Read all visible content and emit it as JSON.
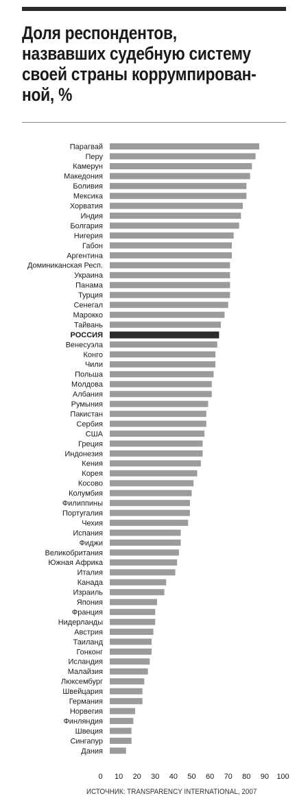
{
  "header": {
    "title_lines": [
      "Доля респондентов,",
      "назвавших судебную систему",
      "своей страны коррумпирован-",
      "ной, %"
    ]
  },
  "source": "ИСТОЧНИК: TRANSPARENCY INTERNATIONAL, 2007",
  "colors": {
    "bar": "#9b9b9b",
    "highlight": "#2b2b2b",
    "text": "#1a1a1a"
  },
  "chart_data": {
    "type": "bar",
    "orientation": "horizontal",
    "highlight": "РОССИЯ",
    "xlim": [
      0,
      100
    ],
    "xticks": [
      0,
      10,
      20,
      30,
      40,
      50,
      60,
      70,
      80,
      90,
      100
    ],
    "categories": [
      "Парагвай",
      "Перу",
      "Камерун",
      "Македония",
      "Боливия",
      "Мексика",
      "Хорватия",
      "Индия",
      "Болгария",
      "Нигерия",
      "Габон",
      "Аргентина",
      "Доминиканская Респ.",
      "Украина",
      "Панама",
      "Турция",
      "Сенегал",
      "Марокко",
      "Тайвань",
      "РОССИЯ",
      "Венесуэла",
      "Конго",
      "Чили",
      "Польша",
      "Молдова",
      "Албания",
      "Румыния",
      "Пакистан",
      "Сербия",
      "США",
      "Греция",
      "Индонезия",
      "Кения",
      "Корея",
      "Косово",
      "Колумбия",
      "Филиппины",
      "Португалия",
      "Чехия",
      "Испания",
      "Фиджи",
      "Великобритания",
      "Южная Африка",
      "Италия",
      "Канада",
      "Израиль",
      "Япония",
      "Франция",
      "Нидерланды",
      "Австрия",
      "Таиланд",
      "Гонконг",
      "Исландия",
      "Малайзия",
      "Люксембург",
      "Швейцария",
      "Германия",
      "Норвегия",
      "Финляндия",
      "Швеция",
      "Сингапур",
      "Дания"
    ],
    "values": [
      87,
      85,
      83,
      82,
      80,
      80,
      78,
      77,
      76,
      73,
      72,
      72,
      71,
      71,
      71,
      71,
      70,
      68,
      66,
      65,
      64,
      63,
      63,
      62,
      61,
      61,
      59,
      58,
      58,
      57,
      56,
      56,
      55,
      53,
      51,
      50,
      49,
      49,
      48,
      44,
      44,
      43,
      42,
      41,
      36,
      35,
      31,
      30,
      30,
      29,
      28,
      28,
      27,
      26,
      24,
      23,
      23,
      19,
      18,
      17,
      17,
      14
    ]
  }
}
